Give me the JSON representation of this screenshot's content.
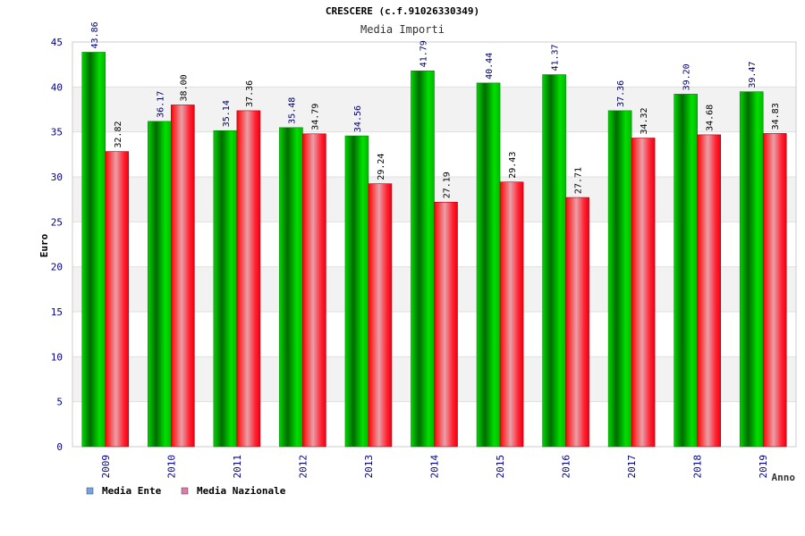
{
  "chart_data": {
    "type": "bar",
    "title": "CRESCERE (c.f.91026330349)",
    "subtitle": "Media Importi",
    "xlabel": "Anno",
    "ylabel": "Euro",
    "ylim": [
      0,
      45
    ],
    "yticks": [
      0,
      5,
      10,
      15,
      20,
      25,
      30,
      35,
      40,
      45
    ],
    "categories": [
      "2009",
      "2010",
      "2011",
      "2012",
      "2013",
      "2014",
      "2015",
      "2016",
      "2017",
      "2018",
      "2019"
    ],
    "series": [
      {
        "name": "Media Ente",
        "values": [
          43.86,
          36.17,
          35.14,
          35.48,
          34.56,
          41.79,
          40.44,
          41.37,
          37.36,
          39.2,
          39.47
        ],
        "labels": [
          "43.86",
          "36.17",
          "35.14",
          "35.48",
          "34.56",
          "41.79",
          "40.44",
          "41.37",
          "37.36",
          "39.20",
          "39.47"
        ],
        "color": "#00c000",
        "legend_color": "#6ea6e8"
      },
      {
        "name": "Media Nazionale",
        "values": [
          32.82,
          38.0,
          37.36,
          34.79,
          29.24,
          27.19,
          29.43,
          27.71,
          34.32,
          34.68,
          34.83
        ],
        "labels": [
          "32.82",
          "38.00",
          "37.36",
          "34.79",
          "29.24",
          "27.19",
          "29.43",
          "27.71",
          "34.32",
          "34.68",
          "34.83"
        ],
        "color": "#ee1122",
        "legend_color": "#e07aa8"
      }
    ],
    "grid": true,
    "legend_position": "bottom-left"
  }
}
